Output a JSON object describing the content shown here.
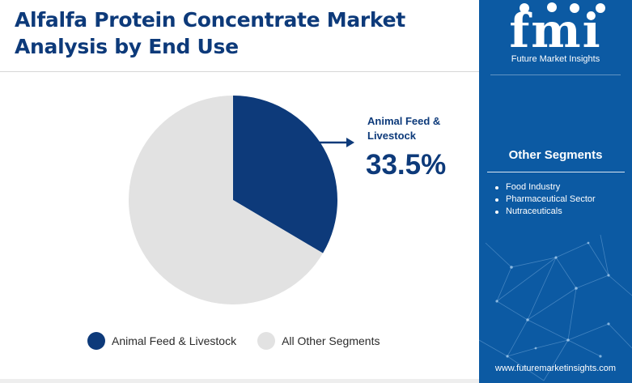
{
  "header": {
    "title": "Alfalfa Protein Concentrate Market Analysis by End Use"
  },
  "chart_data": {
    "type": "pie",
    "categories": [
      "Animal Feed & Livestock",
      "All Other Segments"
    ],
    "values": [
      33.5,
      66.5
    ],
    "unit": "%",
    "colors": [
      "#0d3a7a",
      "#e2e2e2"
    ],
    "legend_position": "bottom"
  },
  "callout": {
    "label": "Animal Feed & Livestock",
    "value": "33.5%",
    "arrow_icon": "arrow-right-icon"
  },
  "legend": [
    {
      "label": "Animal Feed & Livestock",
      "color": "#0d3a7a"
    },
    {
      "label": "All Other Segments",
      "color": "#e2e2e2"
    }
  ],
  "sidebar": {
    "logo_text": "fmi",
    "logo_tagline": "Future Market Insights",
    "heading": "Other Segments",
    "items": [
      "Food Industry",
      "Pharmaceutical Sector",
      "Nutraceuticals"
    ],
    "website": "www.futuremarketinsights.com",
    "background_color": "#0c5aa3"
  }
}
